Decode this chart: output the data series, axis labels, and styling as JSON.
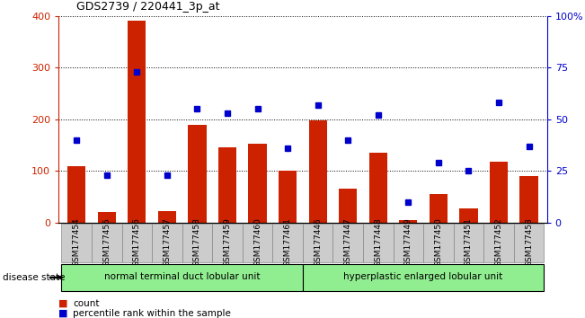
{
  "title": "GDS2739 / 220441_3p_at",
  "samples": [
    "GSM177454",
    "GSM177455",
    "GSM177456",
    "GSM177457",
    "GSM177458",
    "GSM177459",
    "GSM177460",
    "GSM177461",
    "GSM177446",
    "GSM177447",
    "GSM177448",
    "GSM177449",
    "GSM177450",
    "GSM177451",
    "GSM177452",
    "GSM177453"
  ],
  "counts": [
    110,
    20,
    390,
    22,
    190,
    145,
    152,
    100,
    197,
    65,
    135,
    5,
    55,
    27,
    118,
    90
  ],
  "percentiles": [
    40,
    23,
    73,
    23,
    55,
    53,
    55,
    36,
    57,
    40,
    52,
    10,
    29,
    25,
    58,
    37
  ],
  "group1_label": "normal terminal duct lobular unit",
  "group2_label": "hyperplastic enlarged lobular unit",
  "group1_count": 8,
  "group2_count": 8,
  "bar_color": "#cc2200",
  "dot_color": "#0000cc",
  "ylim_left": [
    0,
    400
  ],
  "ylim_right": [
    0,
    100
  ],
  "yticks_left": [
    0,
    100,
    200,
    300,
    400
  ],
  "yticks_right": [
    0,
    25,
    50,
    75,
    100
  ],
  "yticklabels_right": [
    "0",
    "25",
    "50",
    "75",
    "100%"
  ],
  "group1_color": "#90ee90",
  "group2_color": "#90ee90",
  "xticklabel_bg": "#cccccc",
  "xticklabel_border": "#888888"
}
